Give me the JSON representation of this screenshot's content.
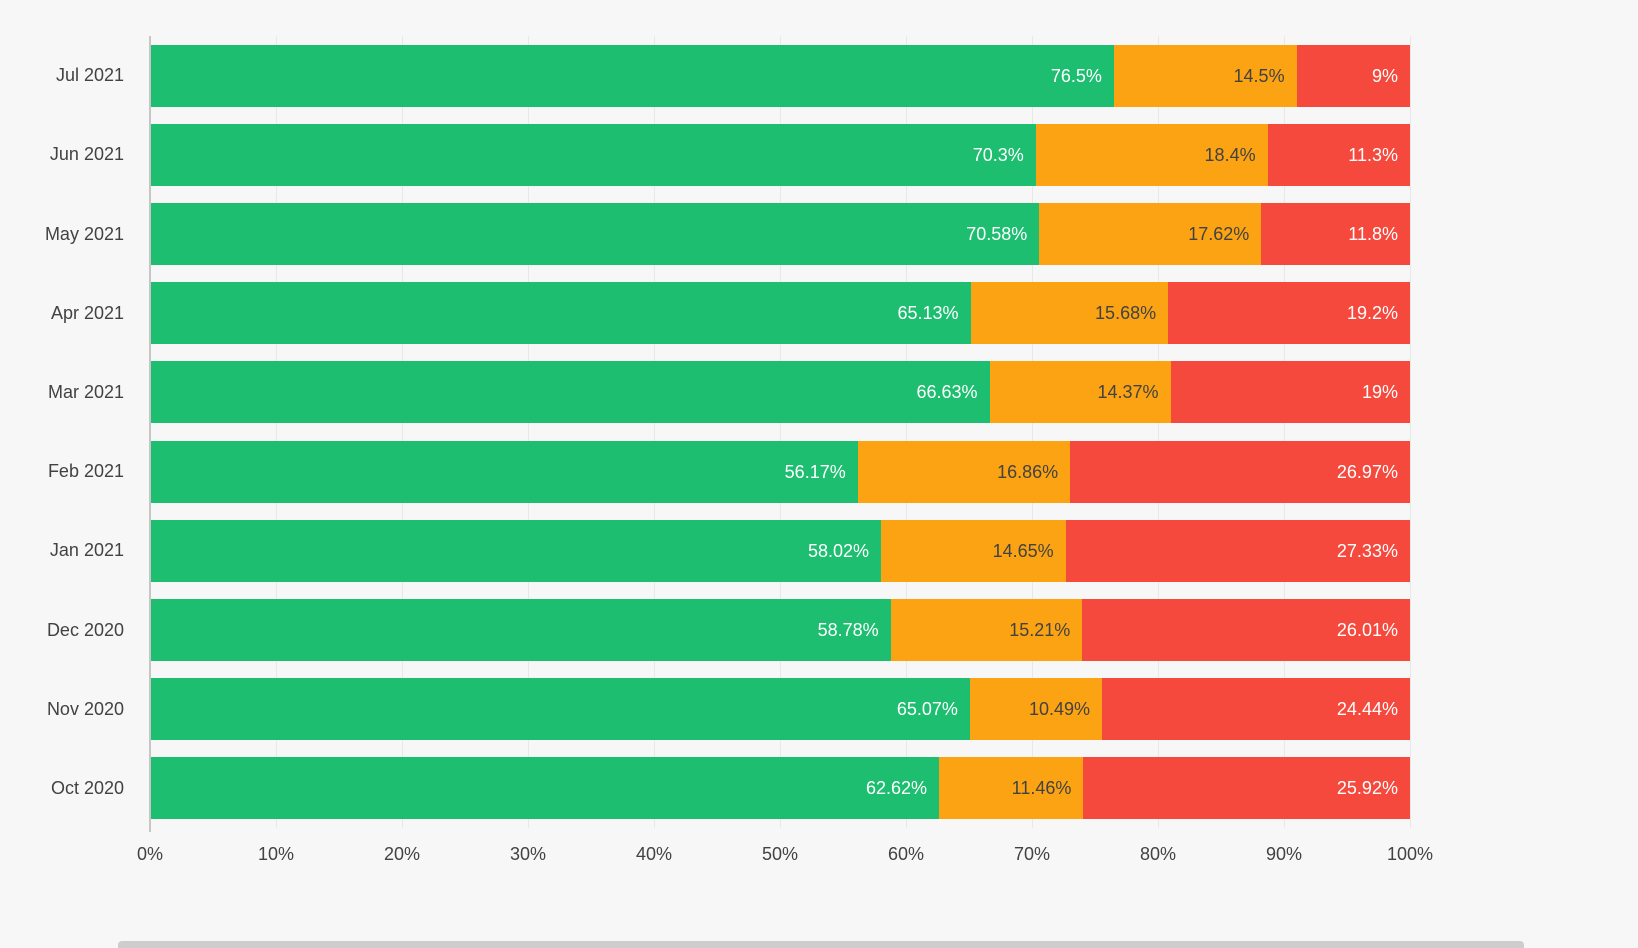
{
  "chart_data": {
    "type": "bar",
    "orientation": "horizontal",
    "stacked": true,
    "title": "",
    "xlabel": "",
    "ylabel": "",
    "xlim": [
      0,
      100
    ],
    "grid": true,
    "legend_position": "none",
    "categories": [
      "Jul 2021",
      "Jun 2021",
      "May 2021",
      "Apr 2021",
      "Mar 2021",
      "Feb 2021",
      "Jan 2021",
      "Dec 2020",
      "Nov 2020",
      "Oct 2020"
    ],
    "series": [
      {
        "name": "green",
        "color": "#1ebe71",
        "label_color": "#ffffff",
        "values": [
          76.5,
          70.3,
          70.58,
          65.13,
          66.63,
          56.17,
          58.02,
          58.78,
          65.07,
          62.62
        ],
        "labels": [
          "76.5%",
          "70.3%",
          "70.58%",
          "65.13%",
          "66.63%",
          "56.17%",
          "58.02%",
          "58.78%",
          "65.07%",
          "62.62%"
        ]
      },
      {
        "name": "orange",
        "color": "#fba313",
        "label_color": "#424242",
        "values": [
          14.5,
          18.4,
          17.62,
          15.68,
          14.37,
          16.86,
          14.65,
          15.21,
          10.49,
          11.46
        ],
        "labels": [
          "14.5%",
          "18.4%",
          "17.62%",
          "15.68%",
          "14.37%",
          "16.86%",
          "14.65%",
          "15.21%",
          "10.49%",
          "11.46%"
        ]
      },
      {
        "name": "red",
        "color": "#f5493d",
        "label_color": "#ffffff",
        "values": [
          9,
          11.3,
          11.8,
          19.2,
          19,
          26.97,
          27.33,
          26.01,
          24.44,
          25.92
        ],
        "labels": [
          "9%",
          "11.3%",
          "11.8%",
          "19.2%",
          "19%",
          "26.97%",
          "27.33%",
          "26.01%",
          "24.44%",
          "25.92%"
        ]
      }
    ],
    "x_ticks": [
      "0%",
      "10%",
      "20%",
      "30%",
      "40%",
      "50%",
      "60%",
      "70%",
      "80%",
      "90%",
      "100%"
    ]
  },
  "colors": {
    "background": "#f7f7f7",
    "gridline": "#e8e8e8",
    "axis_line": "#c6c6c6",
    "tick_text": "#424242"
  }
}
